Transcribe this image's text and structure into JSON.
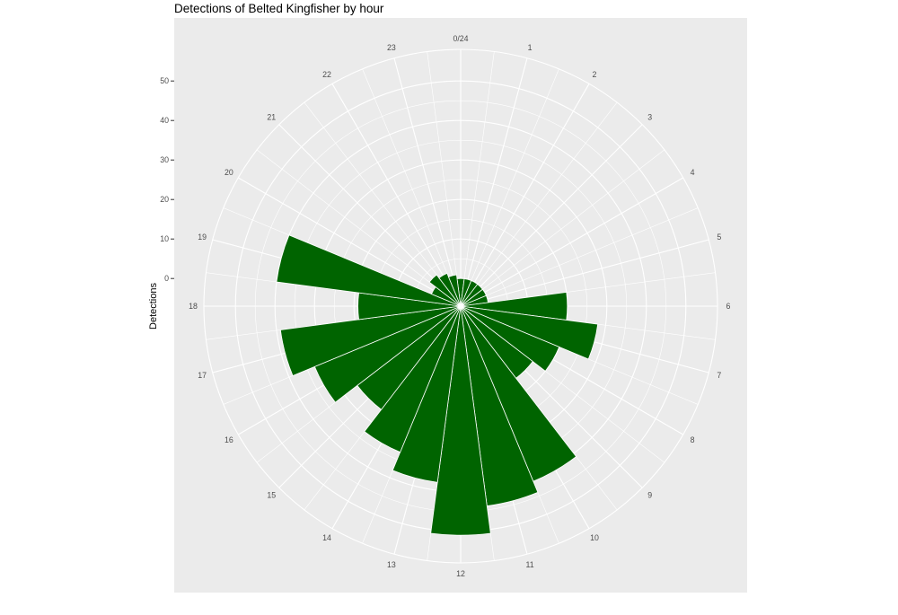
{
  "chart_data": {
    "type": "bar",
    "coord": "polar",
    "title": "Detections of Belted Kingfisher by hour",
    "ylabel": "Detections",
    "xlabel": "",
    "y_ticks": [
      0,
      10,
      20,
      30,
      40,
      50
    ],
    "ylim": [
      -7,
      58
    ],
    "hour_labels": [
      "0/24",
      "1",
      "2",
      "3",
      "4",
      "5",
      "6",
      "7",
      "8",
      "9",
      "10",
      "11",
      "12",
      "13",
      "14",
      "15",
      "16",
      "17",
      "18",
      "19",
      "20",
      "21",
      "22",
      "23"
    ],
    "categories": [
      0,
      1,
      2,
      3,
      4,
      5,
      6,
      7,
      8,
      9,
      10,
      11,
      12,
      13,
      14,
      15,
      16,
      17,
      18,
      19,
      20,
      21,
      22,
      23
    ],
    "values": [
      0,
      0,
      0,
      0,
      0,
      0,
      20,
      28,
      20,
      16,
      41,
      44,
      51,
      38,
      33,
      26,
      33,
      39,
      19,
      40,
      1,
      3,
      2,
      1
    ],
    "bar_color": "#006400",
    "panel_color": "#ebebeb",
    "grid": true
  }
}
